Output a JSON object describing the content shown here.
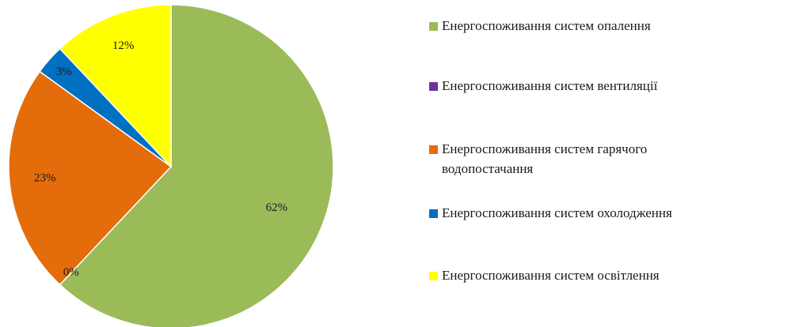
{
  "chart_data": {
    "type": "pie",
    "categories": [
      "Енергоспоживання систем опалення",
      "Енергоспоживання систем вентиляції",
      "Енергоспоживання систем гарячого водопостачання",
      "Енергоспоживання систем охолодження",
      "Енергоспоживання систем освітлення"
    ],
    "values": [
      62,
      0,
      23,
      3,
      12
    ],
    "data_labels": [
      "62%",
      "0%",
      "23%",
      "3%",
      "12%"
    ],
    "colors": [
      "#9bbb59",
      "#7030a0",
      "#e46c0a",
      "#0070c0",
      "#ffff00"
    ],
    "legend": {
      "placement": "right",
      "lines": [
        [
          "Енергоспоживання систем опалення"
        ],
        [
          "Енергоспоживання систем вентиляції"
        ],
        [
          "Енергоспоживання систем гарячого",
          "водопостачання"
        ],
        [
          "Енергоспоживання систем охолодження"
        ],
        [
          "Енергоспоживання систем освітлення"
        ]
      ]
    }
  }
}
